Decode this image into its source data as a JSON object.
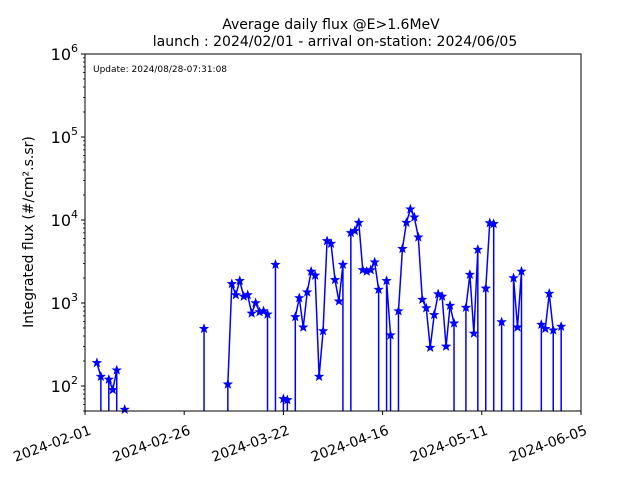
{
  "chart_data": {
    "type": "line",
    "title": "Average daily flux @E>1.6MeV",
    "subtitle": "launch : 2024/02/01 - arrival on-station: 2024/06/05",
    "annotation": "Update: 2024/08/28-07:31:08",
    "xlabel": "",
    "ylabel": "Integrated flux (#/cm².s.sr)",
    "yscale": "log",
    "xlim": [
      "2024-02-01",
      "2024-06-05"
    ],
    "ylim": [
      50,
      1000000
    ],
    "x_ticks": [
      "2024-02-01",
      "2024-02-26",
      "2024-03-22",
      "2024-04-16",
      "2024-05-11",
      "2024-06-05"
    ],
    "y_ticks": [
      {
        "value": 100,
        "base": "10",
        "exp": "2"
      },
      {
        "value": 1000,
        "base": "10",
        "exp": "3"
      },
      {
        "value": 10000,
        "base": "10",
        "exp": "4"
      },
      {
        "value": 100000,
        "base": "10",
        "exp": "5"
      },
      {
        "value": 1000000,
        "base": "10",
        "exp": "6"
      }
    ],
    "grid": false,
    "series": [
      {
        "color": "#0000ff",
        "marker": "star",
        "points": [
          {
            "x": "2024-02-04",
            "y": 190
          },
          {
            "x": "2024-02-05",
            "y": 130
          },
          {
            "x": "2024-02-07",
            "y": 120
          },
          {
            "x": "2024-02-08",
            "y": 90
          },
          {
            "x": "2024-02-09",
            "y": 155
          },
          {
            "x": "2024-02-11",
            "y": 52
          },
          {
            "x": "2024-03-02",
            "y": 490
          },
          {
            "x": "2024-03-08",
            "y": 105
          },
          {
            "x": "2024-03-09",
            "y": 1700
          },
          {
            "x": "2024-03-10",
            "y": 1250
          },
          {
            "x": "2024-03-11",
            "y": 1850
          },
          {
            "x": "2024-03-12",
            "y": 1200
          },
          {
            "x": "2024-03-13",
            "y": 1250
          },
          {
            "x": "2024-03-14",
            "y": 750
          },
          {
            "x": "2024-03-15",
            "y": 1000
          },
          {
            "x": "2024-03-16",
            "y": 780
          },
          {
            "x": "2024-03-17",
            "y": 800
          },
          {
            "x": "2024-03-18",
            "y": 730
          },
          {
            "x": "2024-03-20",
            "y": 2900
          },
          {
            "x": "2024-03-22",
            "y": 70
          },
          {
            "x": "2024-03-23",
            "y": 68
          },
          {
            "x": "2024-03-25",
            "y": 680
          },
          {
            "x": "2024-03-26",
            "y": 1150
          },
          {
            "x": "2024-03-27",
            "y": 510
          },
          {
            "x": "2024-03-28",
            "y": 1350
          },
          {
            "x": "2024-03-29",
            "y": 2400
          },
          {
            "x": "2024-03-30",
            "y": 2150
          },
          {
            "x": "2024-03-31",
            "y": 130
          },
          {
            "x": "2024-04-01",
            "y": 460
          },
          {
            "x": "2024-04-02",
            "y": 5600
          },
          {
            "x": "2024-04-03",
            "y": 5200
          },
          {
            "x": "2024-04-04",
            "y": 1900
          },
          {
            "x": "2024-04-05",
            "y": 1050
          },
          {
            "x": "2024-04-06",
            "y": 2900
          },
          {
            "x": "2024-04-08",
            "y": 7000
          },
          {
            "x": "2024-04-09",
            "y": 7400
          },
          {
            "x": "2024-04-10",
            "y": 9300
          },
          {
            "x": "2024-04-11",
            "y": 2500
          },
          {
            "x": "2024-04-12",
            "y": 2400
          },
          {
            "x": "2024-04-13",
            "y": 2500
          },
          {
            "x": "2024-04-14",
            "y": 3100
          },
          {
            "x": "2024-04-15",
            "y": 1450
          },
          {
            "x": "2024-04-17",
            "y": 1850
          },
          {
            "x": "2024-04-18",
            "y": 410
          },
          {
            "x": "2024-04-20",
            "y": 800
          },
          {
            "x": "2024-04-21",
            "y": 4500
          },
          {
            "x": "2024-04-22",
            "y": 9300
          },
          {
            "x": "2024-04-23",
            "y": 13500
          },
          {
            "x": "2024-04-24",
            "y": 10800
          },
          {
            "x": "2024-04-25",
            "y": 6200
          },
          {
            "x": "2024-04-26",
            "y": 1100
          },
          {
            "x": "2024-04-27",
            "y": 870
          },
          {
            "x": "2024-04-28",
            "y": 290
          },
          {
            "x": "2024-04-29",
            "y": 720
          },
          {
            "x": "2024-04-30",
            "y": 1280
          },
          {
            "x": "2024-05-01",
            "y": 1200
          },
          {
            "x": "2024-05-02",
            "y": 300
          },
          {
            "x": "2024-05-03",
            "y": 930
          },
          {
            "x": "2024-05-04",
            "y": 570
          },
          {
            "x": "2024-05-07",
            "y": 880
          },
          {
            "x": "2024-05-08",
            "y": 2200
          },
          {
            "x": "2024-05-09",
            "y": 430
          },
          {
            "x": "2024-05-10",
            "y": 4400
          },
          {
            "x": "2024-05-12",
            "y": 1500
          },
          {
            "x": "2024-05-13",
            "y": 9200
          },
          {
            "x": "2024-05-14",
            "y": 9000
          },
          {
            "x": "2024-05-16",
            "y": 590
          },
          {
            "x": "2024-05-19",
            "y": 2000
          },
          {
            "x": "2024-05-20",
            "y": 510
          },
          {
            "x": "2024-05-21",
            "y": 2400
          },
          {
            "x": "2024-05-26",
            "y": 550
          },
          {
            "x": "2024-05-27",
            "y": 490
          },
          {
            "x": "2024-05-28",
            "y": 1300
          },
          {
            "x": "2024-05-29",
            "y": 470
          },
          {
            "x": "2024-05-31",
            "y": 520
          }
        ]
      }
    ]
  }
}
